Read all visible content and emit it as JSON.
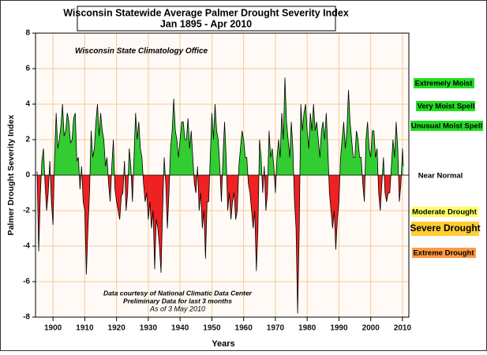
{
  "chart_data": {
    "type": "area",
    "title": "Wisconsin Statewide Average Palmer Drought Severity Index",
    "subtitle": "Jan 1895 - Apr 2010",
    "x_label": "Years",
    "y_label": "Palmer Drought Severity Index",
    "source_note": "Wisconsin State Climatology Office",
    "footnotes": [
      "Data courtesy of National Climatic Data Center",
      "Preliminary Data for last 3 months",
      "As of 3 May 2010"
    ],
    "categories_labels": [
      "Extremely Moist",
      "Very Moist Spell",
      "Unusual Moist Spell",
      "Near Normal",
      "Moderate Drought",
      "Severe Drought",
      "Extreme Drought"
    ],
    "positive_color": "#33cc33",
    "negative_color": "#ee2222",
    "line_color": "#000000",
    "grid": true,
    "xlim": [
      1894.5,
      2012
    ],
    "ylim": [
      -8,
      8
    ],
    "xticks": [
      1900,
      1910,
      1920,
      1930,
      1940,
      1950,
      1960,
      1970,
      1980,
      1990,
      2000,
      2010
    ],
    "yticks": [
      -8,
      -6,
      -4,
      -2,
      0,
      2,
      4,
      6,
      8
    ],
    "x": [
      1895,
      1895.5,
      1896,
      1896.5,
      1897,
      1897.5,
      1898,
      1898.5,
      1899,
      1899.5,
      1900,
      1900.5,
      1901,
      1901.5,
      1902,
      1902.5,
      1903,
      1903.5,
      1904,
      1904.5,
      1905,
      1905.5,
      1906,
      1906.5,
      1907,
      1907.5,
      1908,
      1908.5,
      1909,
      1909.5,
      1910,
      1910.5,
      1911,
      1911.5,
      1912,
      1912.5,
      1913,
      1913.5,
      1914,
      1914.5,
      1915,
      1915.5,
      1916,
      1916.5,
      1917,
      1917.5,
      1918,
      1918.5,
      1919,
      1919.5,
      1920,
      1920.5,
      1921,
      1921.5,
      1922,
      1922.5,
      1923,
      1923.5,
      1924,
      1924.5,
      1925,
      1925.5,
      1926,
      1926.5,
      1927,
      1927.5,
      1928,
      1928.5,
      1929,
      1929.5,
      1930,
      1930.5,
      1931,
      1931.5,
      1932,
      1932.5,
      1933,
      1933.5,
      1934,
      1934.5,
      1935,
      1935.5,
      1936,
      1936.5,
      1937,
      1937.5,
      1938,
      1938.5,
      1939,
      1939.5,
      1940,
      1940.5,
      1941,
      1941.5,
      1942,
      1942.5,
      1943,
      1943.5,
      1944,
      1944.5,
      1945,
      1945.5,
      1946,
      1946.5,
      1947,
      1947.5,
      1948,
      1948.5,
      1949,
      1949.5,
      1950,
      1950.5,
      1951,
      1951.5,
      1952,
      1952.5,
      1953,
      1953.5,
      1954,
      1954.5,
      1955,
      1955.5,
      1956,
      1956.5,
      1957,
      1957.5,
      1958,
      1958.5,
      1959,
      1959.5,
      1960,
      1960.5,
      1961,
      1961.5,
      1962,
      1962.5,
      1963,
      1963.5,
      1964,
      1964.5,
      1965,
      1965.5,
      1966,
      1966.5,
      1967,
      1967.5,
      1968,
      1968.5,
      1969,
      1969.5,
      1970,
      1970.5,
      1971,
      1971.5,
      1972,
      1972.5,
      1973,
      1973.5,
      1974,
      1974.5,
      1975,
      1975.5,
      1976,
      1976.5,
      1977,
      1977.5,
      1978,
      1978.5,
      1979,
      1979.5,
      1980,
      1980.5,
      1981,
      1981.5,
      1982,
      1982.5,
      1983,
      1983.5,
      1984,
      1984.5,
      1985,
      1985.5,
      1986,
      1986.5,
      1987,
      1987.5,
      1988,
      1988.5,
      1989,
      1989.5,
      1990,
      1990.5,
      1991,
      1991.5,
      1992,
      1992.5,
      1993,
      1993.5,
      1994,
      1994.5,
      1995,
      1995.5,
      1996,
      1996.5,
      1997,
      1997.5,
      1998,
      1998.5,
      1999,
      1999.5,
      2000,
      2000.5,
      2001,
      2001.5,
      2002,
      2002.5,
      2003,
      2003.5,
      2004,
      2004.5,
      2005,
      2005.5,
      2006,
      2006.5,
      2007,
      2007.5,
      2008,
      2008.5,
      2009,
      2009.5,
      2010,
      2010.25
    ],
    "values": [
      0.2,
      -4.3,
      -1.2,
      0.8,
      1.5,
      -0.5,
      -2.0,
      -1.0,
      0.8,
      -1.5,
      -2.8,
      1.0,
      3.5,
      1.5,
      2.0,
      2.8,
      4.0,
      2.2,
      2.5,
      3.5,
      3.0,
      1.8,
      2.0,
      3.2,
      3.5,
      0.8,
      1.0,
      -0.8,
      0.5,
      -1.5,
      -2.0,
      -5.6,
      -3.0,
      -1.0,
      2.5,
      1.0,
      1.5,
      3.0,
      4.0,
      2.2,
      3.5,
      2.5,
      2.0,
      0.5,
      1.0,
      -0.5,
      -1.5,
      0.5,
      2.0,
      -0.8,
      -1.5,
      -2.0,
      -2.5,
      -1.2,
      -1.0,
      0.8,
      -2.0,
      -1.0,
      1.5,
      0.5,
      -1.5,
      1.0,
      3.5,
      2.0,
      3.0,
      1.5,
      1.0,
      -0.5,
      -1.5,
      -1.0,
      -2.5,
      -1.5,
      -3.0,
      -2.0,
      -5.3,
      -2.5,
      -3.0,
      -4.0,
      -5.5,
      -2.0,
      1.0,
      -0.5,
      -3.0,
      -1.0,
      1.5,
      2.5,
      4.3,
      2.5,
      2.0,
      1.0,
      2.0,
      3.0,
      3.0,
      2.0,
      2.0,
      3.2,
      1.5,
      2.5,
      1.0,
      -0.5,
      -1.0,
      0.5,
      -2.0,
      -1.0,
      -3.0,
      -2.0,
      -4.7,
      -1.5,
      -1.5,
      1.0,
      3.5,
      2.0,
      4.0,
      2.5,
      2.0,
      0.5,
      -1.5,
      1.0,
      3.0,
      1.0,
      -2.0,
      -1.0,
      -2.5,
      -1.5,
      -1.0,
      -2.5,
      -2.0,
      0.5,
      1.5,
      2.5,
      2.0,
      1.0,
      1.0,
      -0.5,
      -1.0,
      -2.0,
      -3.0,
      -2.0,
      -5.4,
      -3.0,
      2.0,
      1.0,
      -1.0,
      0.5,
      -2.0,
      -1.0,
      2.5,
      1.0,
      1.5,
      0.5,
      -1.0,
      1.0,
      2.0,
      1.0,
      3.5,
      2.0,
      5.5,
      3.0,
      2.0,
      1.0,
      3.0,
      1.5,
      -1.5,
      -3.0,
      -7.8,
      -3.0,
      4.0,
      2.5,
      3.5,
      4.0,
      2.5,
      1.5,
      3.5,
      2.5,
      4.0,
      2.5,
      3.0,
      2.0,
      1.0,
      2.5,
      3.0,
      2.0,
      3.5,
      1.5,
      -1.0,
      -2.0,
      -3.0,
      -2.0,
      -4.2,
      -2.5,
      -1.5,
      1.0,
      2.0,
      3.0,
      1.5,
      2.5,
      4.8,
      3.0,
      2.0,
      1.0,
      1.0,
      2.5,
      2.0,
      1.0,
      1.0,
      -0.5,
      -1.5,
      2.0,
      3.0,
      1.5,
      1.0,
      2.5,
      2.5,
      1.0,
      1.5,
      -1.0,
      -2.0,
      -0.5,
      1.0,
      -1.0,
      -1.5,
      -1.0,
      -1.0,
      0.5,
      2.0,
      1.0,
      3.0,
      1.5,
      -1.5,
      -0.5,
      1.5,
      0.5
    ]
  }
}
